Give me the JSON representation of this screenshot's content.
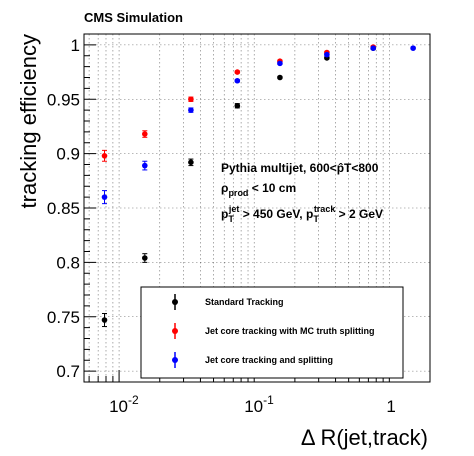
{
  "chart_data": {
    "type": "scatter",
    "header": "CMS Simulation",
    "xlabel": "Δ R(jet,track)",
    "ylabel": "tracking efficiency",
    "xscale": "log",
    "xlim": [
      0.0055,
      2.0
    ],
    "ylim": [
      0.69,
      1.01
    ],
    "grid": true,
    "yticks": [
      0.7,
      0.75,
      0.8,
      0.85,
      0.9,
      0.95,
      1
    ],
    "ytick_labels": [
      "0.7",
      "0.75",
      "0.8",
      "0.85",
      "0.9",
      "0.95",
      "1"
    ],
    "xticks": [
      {
        "base": "10",
        "exp": "-2",
        "value": 0.01
      },
      {
        "base": "10",
        "exp": "-1",
        "value": 0.1
      },
      {
        "base": "1",
        "exp": "",
        "value": 1
      }
    ],
    "annotations": {
      "line1": "Pythia multijet, 600<p̂T<800",
      "line2_main": "ρ",
      "line2_sub": "prod",
      "line2_rest": " < 10 cm",
      "line3_p1": "p",
      "line3_sub1": "T",
      "line3_sup1": "jet",
      "line3_mid": " > 450 GeV, p",
      "line3_sub2": "T",
      "line3_sup2": "track",
      "line3_end": " > 2 GeV"
    },
    "legend_position": "bottom-right",
    "series": [
      {
        "name": "Standard Tracking",
        "color": "#000000",
        "x": [
          0.0078,
          0.0155,
          0.034,
          0.075,
          0.155,
          0.345,
          0.76
        ],
        "y": [
          0.747,
          0.804,
          0.892,
          0.944,
          0.97,
          0.988,
          0.997
        ],
        "yerr": [
          0.006,
          0.004,
          0.003,
          0.002,
          0.001,
          0.001,
          0.001
        ]
      },
      {
        "name": "Jet core tracking with MC truth splitting",
        "color": "#ff0000",
        "x": [
          0.0078,
          0.0155,
          0.034,
          0.075,
          0.155,
          0.345,
          0.76
        ],
        "y": [
          0.898,
          0.918,
          0.95,
          0.975,
          0.985,
          0.993,
          0.998
        ],
        "yerr": [
          0.005,
          0.003,
          0.002,
          0.001,
          0.001,
          0.001,
          0.001
        ]
      },
      {
        "name": "Jet core tracking and splitting",
        "color": "#0000ff",
        "x": [
          0.0078,
          0.0155,
          0.034,
          0.075,
          0.155,
          0.345,
          0.76,
          1.5
        ],
        "y": [
          0.86,
          0.889,
          0.94,
          0.967,
          0.983,
          0.991,
          0.997,
          0.997
        ],
        "yerr": [
          0.006,
          0.004,
          0.002,
          0.001,
          0.001,
          0.001,
          0.001,
          0.001
        ]
      }
    ]
  }
}
